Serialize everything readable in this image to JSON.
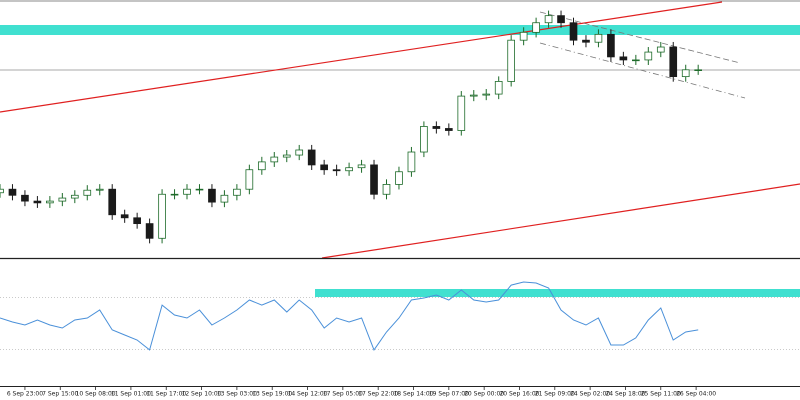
{
  "chart_data": [
    {
      "type": "candlestick",
      "x": [
        -12,
        -6,
        0,
        6,
        12,
        18,
        24,
        30,
        36,
        42,
        48,
        54,
        60,
        66,
        72,
        78,
        84,
        90,
        96,
        102,
        108,
        114,
        120,
        126,
        132,
        138,
        144,
        150,
        156,
        162,
        168,
        174,
        180,
        186,
        192,
        198,
        204,
        210,
        216,
        222,
        228,
        234,
        240,
        246,
        252,
        258,
        264,
        270,
        276,
        282,
        288,
        294,
        300,
        306,
        312,
        318,
        324
      ],
      "open": [
        25,
        26.4,
        24,
        21.7,
        21,
        21.7,
        22.9,
        24,
        26,
        26.4,
        16.3,
        15.1,
        12.8,
        7,
        24.4,
        24.4,
        26.4,
        26.4,
        21.3,
        24,
        26.4,
        34.1,
        37.2,
        39.1,
        39.9,
        41.9,
        36,
        34.1,
        33.7,
        34.9,
        36,
        24.4,
        28.3,
        33.3,
        41.1,
        51.2,
        50.4,
        49.6,
        63.2,
        63.6,
        64,
        69,
        85.3,
        88.4,
        92.2,
        95,
        92.2,
        85.3,
        84.5,
        87.6,
        78.7,
        77.5,
        77.5,
        80.6,
        82.6,
        70.9,
        73.6
      ],
      "high": [
        28.4,
        28.4,
        26,
        23.7,
        23.7,
        24.9,
        26,
        28,
        28.4,
        28.4,
        18.3,
        17.1,
        14.8,
        26.4,
        26.4,
        28.4,
        28.4,
        28.4,
        26,
        28.4,
        36.1,
        39.2,
        41.1,
        41.9,
        43.9,
        43.9,
        38,
        36.1,
        36.9,
        38,
        38,
        30.3,
        35.3,
        43.1,
        53.2,
        53.2,
        52.4,
        65.2,
        65.6,
        66,
        71,
        87.3,
        90.4,
        94.2,
        97,
        97,
        94.2,
        87.3,
        89.6,
        89.6,
        80.7,
        79.5,
        82.6,
        84.6,
        84.6,
        75.6,
        75.6
      ],
      "low": [
        23,
        22,
        19.7,
        19,
        19,
        19.7,
        20.9,
        22,
        24,
        14.3,
        13.1,
        10.8,
        5,
        5,
        22.4,
        22.4,
        24.4,
        19.3,
        19.3,
        22,
        24.4,
        32.1,
        35.2,
        37.1,
        37.9,
        34,
        32.1,
        31.7,
        31.7,
        32.9,
        22.4,
        22.4,
        26.3,
        31.3,
        39.1,
        48.4,
        47.6,
        47.6,
        61.2,
        61.6,
        62,
        67,
        83.3,
        86.4,
        90.2,
        90.2,
        83.3,
        82.5,
        82.5,
        76.7,
        75.5,
        75.5,
        75.5,
        78.6,
        68.9,
        68.9,
        71.6
      ],
      "close": [
        26.4,
        24,
        21.7,
        21,
        21.7,
        22.9,
        24,
        26,
        26.4,
        16.3,
        15.1,
        12.8,
        7,
        24.4,
        24.4,
        26.4,
        26.4,
        21.3,
        24,
        26.4,
        34.1,
        37.2,
        39.1,
        39.9,
        41.9,
        36,
        34.1,
        33.7,
        34.9,
        36,
        24.4,
        28.3,
        33.3,
        41.1,
        51.2,
        50.4,
        49.6,
        63.2,
        63.6,
        64,
        69,
        85.3,
        88.4,
        92.2,
        95,
        92.2,
        85.3,
        84.5,
        87.6,
        78.7,
        77.5,
        77.5,
        80.6,
        82.6,
        70.9,
        73.6,
        73.6
      ],
      "xlim": [
        -12,
        373
      ],
      "ylim": [
        0,
        100
      ],
      "up_color": "#1e6b2a",
      "down_color": "#1a1a1a"
    },
    {
      "type": "line",
      "x": [
        -12,
        -6,
        0,
        6,
        12,
        18,
        24,
        30,
        36,
        42,
        48,
        54,
        60,
        66,
        72,
        78,
        84,
        90,
        96,
        102,
        108,
        114,
        120,
        126,
        132,
        138,
        144,
        150,
        156,
        162,
        168,
        174,
        180,
        186,
        192,
        198,
        204,
        210,
        216,
        222,
        228,
        234,
        240,
        246,
        252,
        258,
        264,
        270,
        276,
        282,
        288,
        294,
        300,
        306,
        312,
        318,
        324
      ],
      "values": [
        54.3,
        51.2,
        48.8,
        52.7,
        48.8,
        46.5,
        52.7,
        54.3,
        60.5,
        45,
        41.1,
        37.2,
        29.5,
        64.3,
        56.6,
        54.3,
        60.5,
        48.8,
        54.3,
        60.5,
        68.2,
        64.3,
        68.2,
        58.9,
        68.2,
        60.5,
        46.5,
        54.3,
        51.2,
        54.3,
        29.5,
        43.4,
        54.3,
        68.2,
        69.8,
        72.1,
        68.2,
        76,
        68.2,
        66.7,
        68.2,
        79.8,
        82.2,
        81.4,
        77.5,
        60.5,
        52.7,
        48.8,
        54.3,
        33.3,
        33.3,
        38.8,
        52.7,
        62,
        37.2,
        43.4,
        45
      ],
      "color": "#4a90d9",
      "levels": [
        70,
        30
      ],
      "xlim": [
        -12,
        373
      ],
      "ylim": [
        0,
        100
      ],
      "xticks": [
        {
          "value": 0,
          "label": "6 Sep 23:00"
        },
        {
          "value": 17,
          "label": "7 Sep 15:00"
        },
        {
          "value": 34,
          "label": "10 Sep 08:00"
        },
        {
          "value": 51,
          "label": "11 Sep 01:00"
        },
        {
          "value": 68,
          "label": "11 Sep 17:00"
        },
        {
          "value": 85,
          "label": "12 Sep 10:00"
        },
        {
          "value": 102,
          "label": "13 Sep 03:00"
        },
        {
          "value": 119,
          "label": "13 Sep 19:00"
        },
        {
          "value": 136,
          "label": "14 Sep 12:00"
        },
        {
          "value": 153,
          "label": "17 Sep 05:00"
        },
        {
          "value": 170,
          "label": "17 Sep 22:00"
        },
        {
          "value": 187,
          "label": "18 Sep 14:00"
        },
        {
          "value": 204,
          "label": "19 Sep 07:00"
        },
        {
          "value": 221,
          "label": "20 Sep 00:00"
        },
        {
          "value": 238,
          "label": "20 Sep 16:00"
        },
        {
          "value": 255,
          "label": "21 Sep 09:00"
        },
        {
          "value": 272,
          "label": "24 Sep 02:00"
        },
        {
          "value": 289,
          "label": "24 Sep 18:00"
        },
        {
          "value": 306,
          "label": "25 Sep 11:00"
        },
        {
          "value": 323,
          "label": "26 Sep 04:00"
        }
      ]
    }
  ]
}
